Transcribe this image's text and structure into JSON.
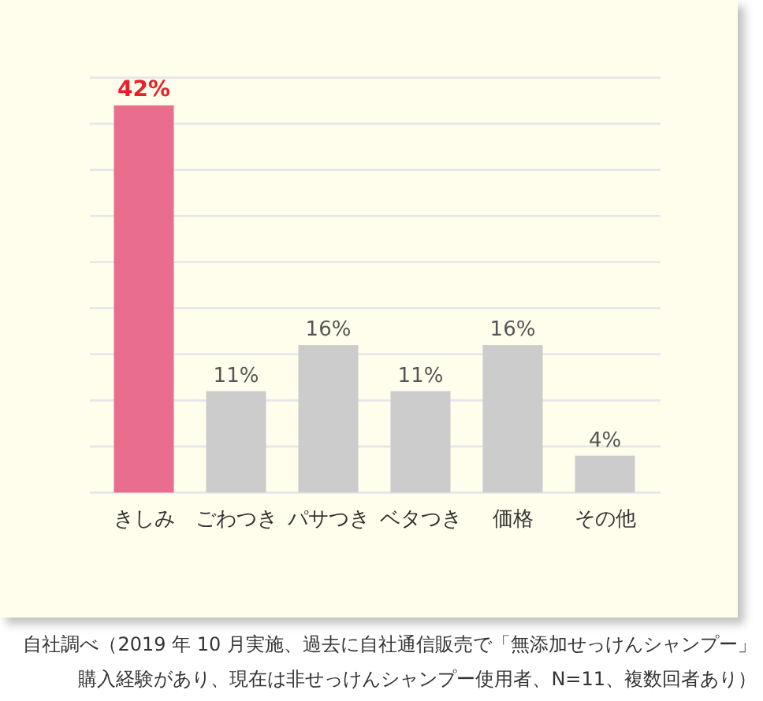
{
  "chart_data": {
    "type": "bar",
    "categories": [
      "きしみ",
      "ごわつき",
      "パサつき",
      "ベタつき",
      "価格",
      "その他"
    ],
    "values": [
      42,
      11,
      16,
      11,
      16,
      4
    ],
    "colors": [
      "#e96e8e",
      "#cccccc",
      "#cccccc",
      "#cccccc",
      "#cccccc",
      "#cccccc"
    ],
    "value_labels": [
      "42%",
      "11%",
      "16%",
      "11%",
      "16%",
      "4%"
    ],
    "ylim": [
      0,
      45
    ],
    "yticks": [
      {
        "value": 0,
        "label": null
      },
      {
        "value": 5,
        "label": null
      },
      {
        "value": 10,
        "label": null
      },
      {
        "value": 15,
        "label": null
      },
      {
        "value": 20,
        "label": null
      },
      {
        "value": 25,
        "label": null
      },
      {
        "value": 30,
        "label": null
      },
      {
        "value": 35,
        "label": null
      },
      {
        "value": 40,
        "label": null
      },
      {
        "value": 45,
        "label": null
      }
    ],
    "grid": "y",
    "tick_labels": "x",
    "annotations": [
      "自社調べ（2019 年 10 月実施、過去に自社通信販売で「無添加せっけんシャンプー」購入経験があり、現在は非せっけんシャンプー使用者、N=11、複数回者あり）"
    ]
  }
}
